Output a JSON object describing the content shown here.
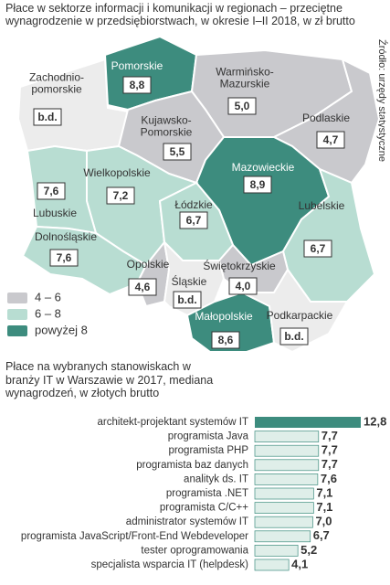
{
  "header": {
    "title": "Płace w sektorze informacji i komunikacji w regionach – przeciętne wynagrodzenie w przedsiębiorstwach, w okresie I–II 2018, w zł brutto"
  },
  "source": "Źródło: urzędy statystyczne",
  "map": {
    "regions": [
      {
        "name": [
          "Zachodnio-",
          "pomorskie"
        ],
        "value": "b.d.",
        "color": "#ececec"
      },
      {
        "name": [
          "Pomorskie"
        ],
        "value": "8,8",
        "color": "#3d8c7e"
      },
      {
        "name": [
          "Warmińsko-",
          "Mazurskie"
        ],
        "value": "5,0",
        "color": "#c9c9cd"
      },
      {
        "name": [
          "Podlaskie"
        ],
        "value": "4,7",
        "color": "#c9c9cd"
      },
      {
        "name": [
          "Kujawsko-",
          "Pomorskie"
        ],
        "value": "5,5",
        "color": "#c9c9cd"
      },
      {
        "name": [
          "Mazowieckie"
        ],
        "value": "8,9",
        "color": "#3d8c7e"
      },
      {
        "name": [
          "Lubelskie"
        ],
        "value": "6,7",
        "color": "#b8ddd2"
      },
      {
        "name": [
          "Wielkopolskie"
        ],
        "value": "7,2",
        "color": "#b8ddd2"
      },
      {
        "name": [
          "Lubuskie"
        ],
        "value": "7,6",
        "color": "#b8ddd2"
      },
      {
        "name": [
          "Dolnośląskie"
        ],
        "value": "7,6",
        "color": "#b8ddd2"
      },
      {
        "name": [
          "Łódzkie"
        ],
        "value": "6,7",
        "color": "#b8ddd2"
      },
      {
        "name": [
          "Świętokrzyskie"
        ],
        "value": "4,0",
        "color": "#c9c9cd"
      },
      {
        "name": [
          "Opolskie"
        ],
        "value": "4,6",
        "color": "#c9c9cd"
      },
      {
        "name": [
          "Śląskie"
        ],
        "value": "b.d.",
        "color": "#ececec"
      },
      {
        "name": [
          "Małopolskie"
        ],
        "value": "8,6",
        "color": "#3d8c7e"
      },
      {
        "name": [
          "Podkarpackie"
        ],
        "value": "b.d.",
        "color": "#ececec"
      }
    ],
    "legend": [
      {
        "label": "4 – 6",
        "color": "#c9c9cd"
      },
      {
        "label": "6 – 8",
        "color": "#b8ddd2"
      },
      {
        "label": "powyżej 8",
        "color": "#3d8c7e"
      }
    ]
  },
  "chart_data": {
    "type": "bar",
    "orientation": "horizontal",
    "title": "Płace na wybranych stanowiskach w branży IT w Warszawie w 2017, mediana wynagrodzeń, w złotych brutto",
    "categories": [
      "architekt-projektant systemów IT",
      "programista Java",
      "programista PHP",
      "programista baz danych",
      "analityk ds. IT",
      "programista .NET",
      "programista C/C++",
      "administrator systemów IT",
      "programista JavaScript/Front-End Webdeveloper",
      "tester oprogramowania",
      "specjalista wsparcia IT (helpdesk)"
    ],
    "values": [
      12.8,
      7.7,
      7.7,
      7.7,
      7.6,
      7.1,
      7.1,
      7.0,
      6.7,
      5.2,
      4.1
    ],
    "value_labels": [
      "12,8",
      "7,7",
      "7,7",
      "7,7",
      "7,6",
      "7,1",
      "7,1",
      "7,0",
      "6,7",
      "5,2",
      "4,1"
    ],
    "colors": [
      "#3d8c7e",
      "#dfeee9",
      "#dfeee9",
      "#dfeee9",
      "#dfeee9",
      "#dfeee9",
      "#dfeee9",
      "#dfeee9",
      "#dfeee9",
      "#dfeee9",
      "#dfeee9"
    ]
  }
}
